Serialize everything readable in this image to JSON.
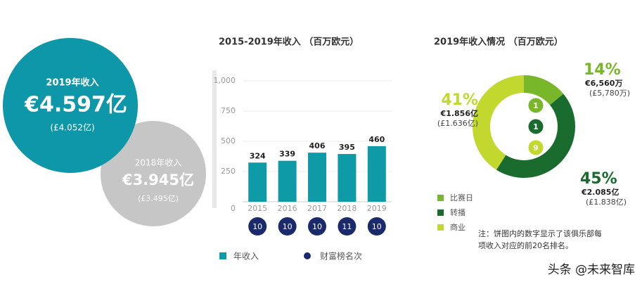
{
  "highlights": [
    {
      "label": "2019年收入",
      "amount": "€4.597亿",
      "gbp": "(£4.052亿)"
    },
    {
      "label": "2018年收入",
      "amount": "€3.945亿",
      "gbp": "(£3.495亿)"
    }
  ],
  "chart_data": [
    {
      "type": "bar",
      "title": "2015-2019年收入 （百万欧元）",
      "categories": [
        "2015",
        "2016",
        "2017",
        "2018",
        "2019"
      ],
      "series": [
        {
          "name": "年收入",
          "color": "#0e9aa7",
          "values": [
            324,
            339,
            406,
            395,
            460
          ]
        },
        {
          "name": "财富榜名次",
          "color": "#1b2a6b",
          "values": [
            10,
            10,
            10,
            11,
            10
          ]
        }
      ],
      "ylim": [
        0,
        1000
      ],
      "yticks": [
        0,
        250,
        500,
        750,
        {
          "value": 1000,
          "label": "1,000"
        }
      ],
      "grid": true
    },
    {
      "type": "donut",
      "title": "2019年收入情况 （百万欧元）",
      "categories": [
        "比赛日",
        "转播",
        "商业"
      ],
      "values": [
        14,
        45,
        41
      ],
      "value_labels": [
        "14%",
        "45%",
        "41%"
      ],
      "colors": [
        "#78b72a",
        "#1a6b2e",
        "#c2d82e"
      ],
      "amounts": [
        "€6,560万",
        "€2.085亿",
        "€1.856亿"
      ],
      "amounts_gbp": [
        "(£5,780万)",
        "(£1.838亿)",
        "(£1.636亿)"
      ],
      "ranks": [
        1,
        1,
        9
      ],
      "note_lines": [
        "注：饼图内的数字显示了该俱乐部每",
        "项收入对应的前20名排名。"
      ]
    }
  ],
  "watermark": "头条 @未来智库"
}
